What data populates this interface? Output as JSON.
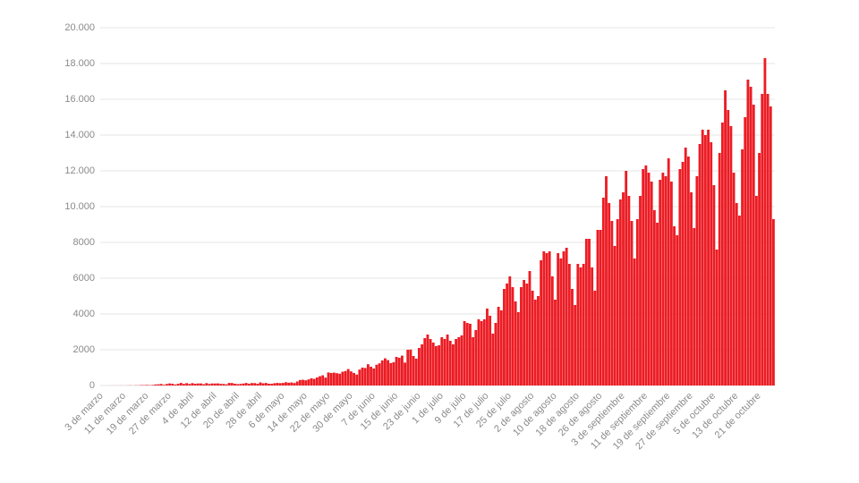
{
  "chart_data": {
    "type": "bar",
    "categories": [
      "3 de marzo",
      null,
      null,
      null,
      null,
      null,
      null,
      null,
      "11 de marzo",
      null,
      null,
      null,
      null,
      null,
      null,
      null,
      "19 de marzo",
      null,
      null,
      null,
      null,
      null,
      null,
      null,
      "27 de marzo",
      null,
      null,
      null,
      null,
      null,
      null,
      null,
      "4 de abril",
      null,
      null,
      null,
      null,
      null,
      null,
      null,
      "12 de abril",
      null,
      null,
      null,
      null,
      null,
      null,
      null,
      "20 de abril",
      null,
      null,
      null,
      null,
      null,
      null,
      null,
      "28 de abril",
      null,
      null,
      null,
      null,
      null,
      null,
      null,
      "6 de mayo",
      null,
      null,
      null,
      null,
      null,
      null,
      null,
      "14 de mayo",
      null,
      null,
      null,
      null,
      null,
      null,
      null,
      "22 de mayo",
      null,
      null,
      null,
      null,
      null,
      null,
      null,
      "30 de mayo",
      null,
      null,
      null,
      null,
      null,
      null,
      null,
      "7 de junio",
      null,
      null,
      null,
      null,
      null,
      null,
      null,
      "15 de junio",
      null,
      null,
      null,
      null,
      null,
      null,
      null,
      "23 de junio",
      null,
      null,
      null,
      null,
      null,
      null,
      null,
      "1 de julio",
      null,
      null,
      null,
      null,
      null,
      null,
      null,
      "9 de julio",
      null,
      null,
      null,
      null,
      null,
      null,
      null,
      "17 de julio",
      null,
      null,
      null,
      null,
      null,
      null,
      null,
      "25 de julio",
      null,
      null,
      null,
      null,
      null,
      null,
      null,
      "2 de agosto",
      null,
      null,
      null,
      null,
      null,
      null,
      null,
      "10 de agosto",
      null,
      null,
      null,
      null,
      null,
      null,
      null,
      "18 de agosto",
      null,
      null,
      null,
      null,
      null,
      null,
      null,
      "26 de agosto",
      null,
      null,
      null,
      null,
      null,
      null,
      null,
      "3 de septiembre",
      null,
      null,
      null,
      null,
      null,
      null,
      null,
      "11 de septiembre",
      null,
      null,
      null,
      null,
      null,
      null,
      null,
      "19 de septiembre",
      null,
      null,
      null,
      null,
      null,
      null,
      null,
      "27 de septiembre",
      null,
      null,
      null,
      null,
      null,
      null,
      null,
      "5 de octubre",
      null,
      null,
      null,
      null,
      null,
      null,
      null,
      "13 de octubre",
      null,
      null,
      null,
      null,
      null,
      null,
      null,
      "21 de octubre",
      null,
      null,
      null,
      null,
      null
    ],
    "values": [
      1,
      0,
      0,
      2,
      2,
      4,
      3,
      5,
      2,
      4,
      12,
      3,
      11,
      10,
      24,
      22,
      31,
      18,
      30,
      58,
      67,
      87,
      41,
      86,
      115,
      101,
      55,
      97,
      146,
      90,
      132,
      88,
      132,
      98,
      114,
      117,
      74,
      134,
      87,
      115,
      113,
      118,
      92,
      88,
      67,
      145,
      140,
      99,
      81,
      90,
      111,
      144,
      98,
      139,
      135,
      100,
      173,
      124,
      143,
      100,
      99,
      130,
      145,
      134,
      145,
      185,
      158,
      170,
      140,
      225,
      310,
      320,
      290,
      340,
      405,
      370,
      450,
      520,
      570,
      440,
      730,
      700,
      720,
      690,
      660,
      770,
      810,
      920,
      790,
      700,
      610,
      890,
      1000,
      980,
      1190,
      1050,
      950,
      1160,
      1240,
      1400,
      1520,
      1420,
      1250,
      1300,
      1600,
      1550,
      1670,
      1280,
      2000,
      2010,
      1650,
      1500,
      2100,
      2300,
      2650,
      2850,
      2600,
      2400,
      2200,
      2250,
      2700,
      2600,
      2850,
      2500,
      2300,
      2600,
      2700,
      2800,
      3600,
      3500,
      3450,
      2700,
      3100,
      3700,
      3600,
      3700,
      4300,
      3900,
      2900,
      3500,
      4400,
      4200,
      5400,
      5700,
      6100,
      5500,
      4700,
      4100,
      5500,
      5900,
      5700,
      6400,
      5300,
      4800,
      5000,
      7000,
      7500,
      7400,
      7500,
      6100,
      4800,
      7400,
      7100,
      7500,
      7700,
      6800,
      5400,
      4500,
      6800,
      6600,
      6800,
      8200,
      8200,
      6600,
      5300,
      8700,
      8700,
      10500,
      11700,
      10200,
      9200,
      7800,
      9300,
      10400,
      10800,
      12000,
      10600,
      9200,
      7100,
      9300,
      10600,
      12100,
      12300,
      11900,
      11400,
      9800,
      9100,
      11500,
      11900,
      11700,
      12700,
      11400,
      8900,
      8400,
      12100,
      12500,
      13300,
      12800,
      10800,
      8800,
      11700,
      13500,
      14300,
      14000,
      14300,
      13600,
      11200,
      7600,
      13000,
      14700,
      16500,
      15400,
      14500,
      11900,
      10200,
      9500,
      13200,
      15000,
      17100,
      16700,
      15700,
      10600,
      13000,
      16300,
      18300,
      16300,
      15600,
      9300
    ],
    "color": "#ec1c24",
    "ylim": [
      0,
      20000
    ],
    "yticks": [
      0,
      2000,
      4000,
      6000,
      8000,
      {
        "value": 10000,
        "label": "10.000"
      },
      {
        "value": 12000,
        "label": "12.000"
      },
      {
        "value": 14000,
        "label": "14.000"
      },
      {
        "value": 16000,
        "label": "16.000"
      },
      {
        "value": 18000,
        "label": "18.000"
      },
      {
        "value": 20000,
        "label": "20.000"
      }
    ],
    "grid": true
  }
}
